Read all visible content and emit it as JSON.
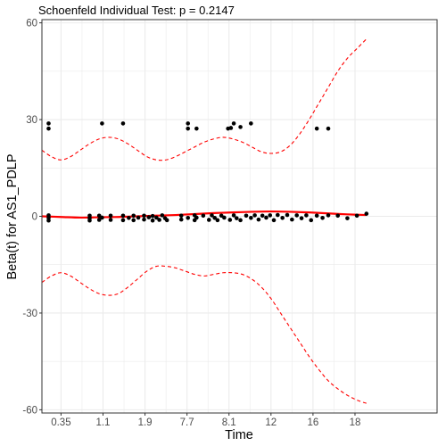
{
  "chart_data": {
    "type": "scatter",
    "title": "Schoenfeld Individual Test: p = 0.2147",
    "xlabel": "Time",
    "ylabel": "Beta(t) for AS1_PDLP",
    "x_tick_labels": [
      "0.35",
      "1.1",
      "1.9",
      "7.7",
      "8.1",
      "12",
      "16",
      "18"
    ],
    "y_ticks": [
      -60,
      -30,
      0,
      30,
      60
    ],
    "xlim": [
      0,
      20.7
    ],
    "ylim": [
      -61,
      61
    ],
    "grid": true,
    "colors": {
      "points": "#000000",
      "fit": "#ff0000",
      "band": "#ff0000",
      "grid": "#ebebeb",
      "panel_border": "#333333"
    },
    "points": [
      {
        "x": 0.35,
        "y": 28.8
      },
      {
        "x": 0.35,
        "y": 27.2
      },
      {
        "x": 0.35,
        "y": 0.3
      },
      {
        "x": 0.35,
        "y": -0.5
      },
      {
        "x": 0.35,
        "y": -1.3
      },
      {
        "x": 2.5,
        "y": 0.2
      },
      {
        "x": 2.5,
        "y": -0.6
      },
      {
        "x": 2.5,
        "y": -1.3
      },
      {
        "x": 3.0,
        "y": 0.2
      },
      {
        "x": 3.0,
        "y": -1.1
      },
      {
        "x": 3.15,
        "y": 28.8
      },
      {
        "x": 3.15,
        "y": -0.4
      },
      {
        "x": 3.6,
        "y": 0.2
      },
      {
        "x": 3.6,
        "y": -1.1
      },
      {
        "x": 4.25,
        "y": 28.8
      },
      {
        "x": 4.25,
        "y": 0.2
      },
      {
        "x": 4.25,
        "y": -1.2
      },
      {
        "x": 4.55,
        "y": -0.5
      },
      {
        "x": 4.8,
        "y": 0.2
      },
      {
        "x": 4.8,
        "y": -1.2
      },
      {
        "x": 5.05,
        "y": -0.4
      },
      {
        "x": 5.35,
        "y": 0.2
      },
      {
        "x": 5.35,
        "y": -1.0
      },
      {
        "x": 5.6,
        "y": -0.3
      },
      {
        "x": 5.8,
        "y": 0.1
      },
      {
        "x": 5.8,
        "y": -1.3
      },
      {
        "x": 6.0,
        "y": -0.4
      },
      {
        "x": 6.15,
        "y": -1.1
      },
      {
        "x": 6.3,
        "y": 0.3
      },
      {
        "x": 6.45,
        "y": -0.6
      },
      {
        "x": 6.55,
        "y": -1.2
      },
      {
        "x": 7.3,
        "y": 0.2
      },
      {
        "x": 7.3,
        "y": -1.0
      },
      {
        "x": 7.65,
        "y": 28.8
      },
      {
        "x": 7.65,
        "y": 27.2
      },
      {
        "x": 7.65,
        "y": -0.5
      },
      {
        "x": 8.0,
        "y": 0.3
      },
      {
        "x": 8.0,
        "y": -1.2
      },
      {
        "x": 8.1,
        "y": 27.2
      },
      {
        "x": 8.1,
        "y": -0.4
      },
      {
        "x": 8.45,
        "y": 0.2
      },
      {
        "x": 8.75,
        "y": -1.1
      },
      {
        "x": 8.9,
        "y": 0.3
      },
      {
        "x": 9.05,
        "y": -0.5
      },
      {
        "x": 9.2,
        "y": -1.2
      },
      {
        "x": 9.4,
        "y": 0.2
      },
      {
        "x": 9.55,
        "y": -0.4
      },
      {
        "x": 9.75,
        "y": 27.2
      },
      {
        "x": 9.9,
        "y": 27.4
      },
      {
        "x": 9.85,
        "y": -1.1
      },
      {
        "x": 10.05,
        "y": 28.8
      },
      {
        "x": 10.05,
        "y": 0.3
      },
      {
        "x": 10.2,
        "y": -0.6
      },
      {
        "x": 10.4,
        "y": 27.7
      },
      {
        "x": 10.4,
        "y": -1.2
      },
      {
        "x": 10.7,
        "y": 0.2
      },
      {
        "x": 10.95,
        "y": 28.8
      },
      {
        "x": 10.95,
        "y": -0.5
      },
      {
        "x": 11.15,
        "y": 0.3
      },
      {
        "x": 11.35,
        "y": -1.0
      },
      {
        "x": 11.55,
        "y": 0.2
      },
      {
        "x": 11.75,
        "y": -0.4
      },
      {
        "x": 11.95,
        "y": 0.3
      },
      {
        "x": 12.15,
        "y": -1.2
      },
      {
        "x": 12.35,
        "y": 0.4
      },
      {
        "x": 12.6,
        "y": -0.5
      },
      {
        "x": 12.85,
        "y": 0.4
      },
      {
        "x": 13.1,
        "y": -1.0
      },
      {
        "x": 13.35,
        "y": 0.3
      },
      {
        "x": 13.6,
        "y": -0.6
      },
      {
        "x": 13.85,
        "y": 0.3
      },
      {
        "x": 14.1,
        "y": -1.2
      },
      {
        "x": 14.4,
        "y": 27.2
      },
      {
        "x": 14.4,
        "y": 0.2
      },
      {
        "x": 14.7,
        "y": -0.5
      },
      {
        "x": 15.0,
        "y": 27.2
      },
      {
        "x": 15.0,
        "y": 0.3
      },
      {
        "x": 15.5,
        "y": 0.2
      },
      {
        "x": 16.0,
        "y": -0.6
      },
      {
        "x": 16.5,
        "y": 0.2
      },
      {
        "x": 17.0,
        "y": 0.8
      }
    ],
    "series": [
      {
        "kind": "fit",
        "x": [
          0,
          1,
          2,
          3,
          4,
          5,
          6,
          7,
          8,
          9,
          10,
          11,
          12,
          13,
          14,
          15,
          16,
          17
        ],
        "y": [
          0.0,
          -0.2,
          -0.4,
          -0.3,
          -0.2,
          0.0,
          0.2,
          0.4,
          0.7,
          1.0,
          1.2,
          1.4,
          1.5,
          1.4,
          1.2,
          0.9,
          0.6,
          0.4
        ]
      },
      {
        "kind": "upper-band",
        "x": [
          0,
          0.5,
          1,
          1.5,
          2,
          2.5,
          3,
          3.5,
          4,
          4.5,
          5,
          5.5,
          6,
          6.5,
          7,
          7.5,
          8,
          8.5,
          9,
          9.5,
          10,
          10.5,
          11,
          11.5,
          12,
          12.5,
          13,
          13.5,
          14,
          14.5,
          15,
          15.5,
          16,
          16.5,
          17
        ],
        "y": [
          20.5,
          18.5,
          17.5,
          18.5,
          20.5,
          22.5,
          24.0,
          24.5,
          24.0,
          22.5,
          20.5,
          18.5,
          17.5,
          17.5,
          18.5,
          20.0,
          21.5,
          23.0,
          24.0,
          24.5,
          24.0,
          23.0,
          21.5,
          20.0,
          19.5,
          20.0,
          22.0,
          25.5,
          30.0,
          35.0,
          40.0,
          45.0,
          49.0,
          52.0,
          55.0
        ]
      },
      {
        "kind": "lower-band",
        "x": [
          0,
          0.5,
          1,
          1.5,
          2,
          2.5,
          3,
          3.5,
          4,
          4.5,
          5,
          5.5,
          6,
          6.5,
          7,
          7.5,
          8,
          8.5,
          9,
          9.5,
          10,
          10.5,
          11,
          11.5,
          12,
          12.5,
          13,
          13.5,
          14,
          14.5,
          15,
          15.5,
          16,
          16.5,
          17
        ],
        "y": [
          -20.5,
          -18.5,
          -17.5,
          -18.5,
          -20.5,
          -22.5,
          -24.0,
          -24.5,
          -24.0,
          -22.0,
          -19.5,
          -17.0,
          -15.5,
          -15.5,
          -16.0,
          -17.0,
          -18.0,
          -18.5,
          -18.0,
          -17.5,
          -17.5,
          -18.0,
          -19.5,
          -22.0,
          -25.5,
          -30.0,
          -34.5,
          -39.0,
          -43.5,
          -47.5,
          -51.0,
          -53.5,
          -55.5,
          -57.0,
          -58.0
        ]
      }
    ]
  }
}
